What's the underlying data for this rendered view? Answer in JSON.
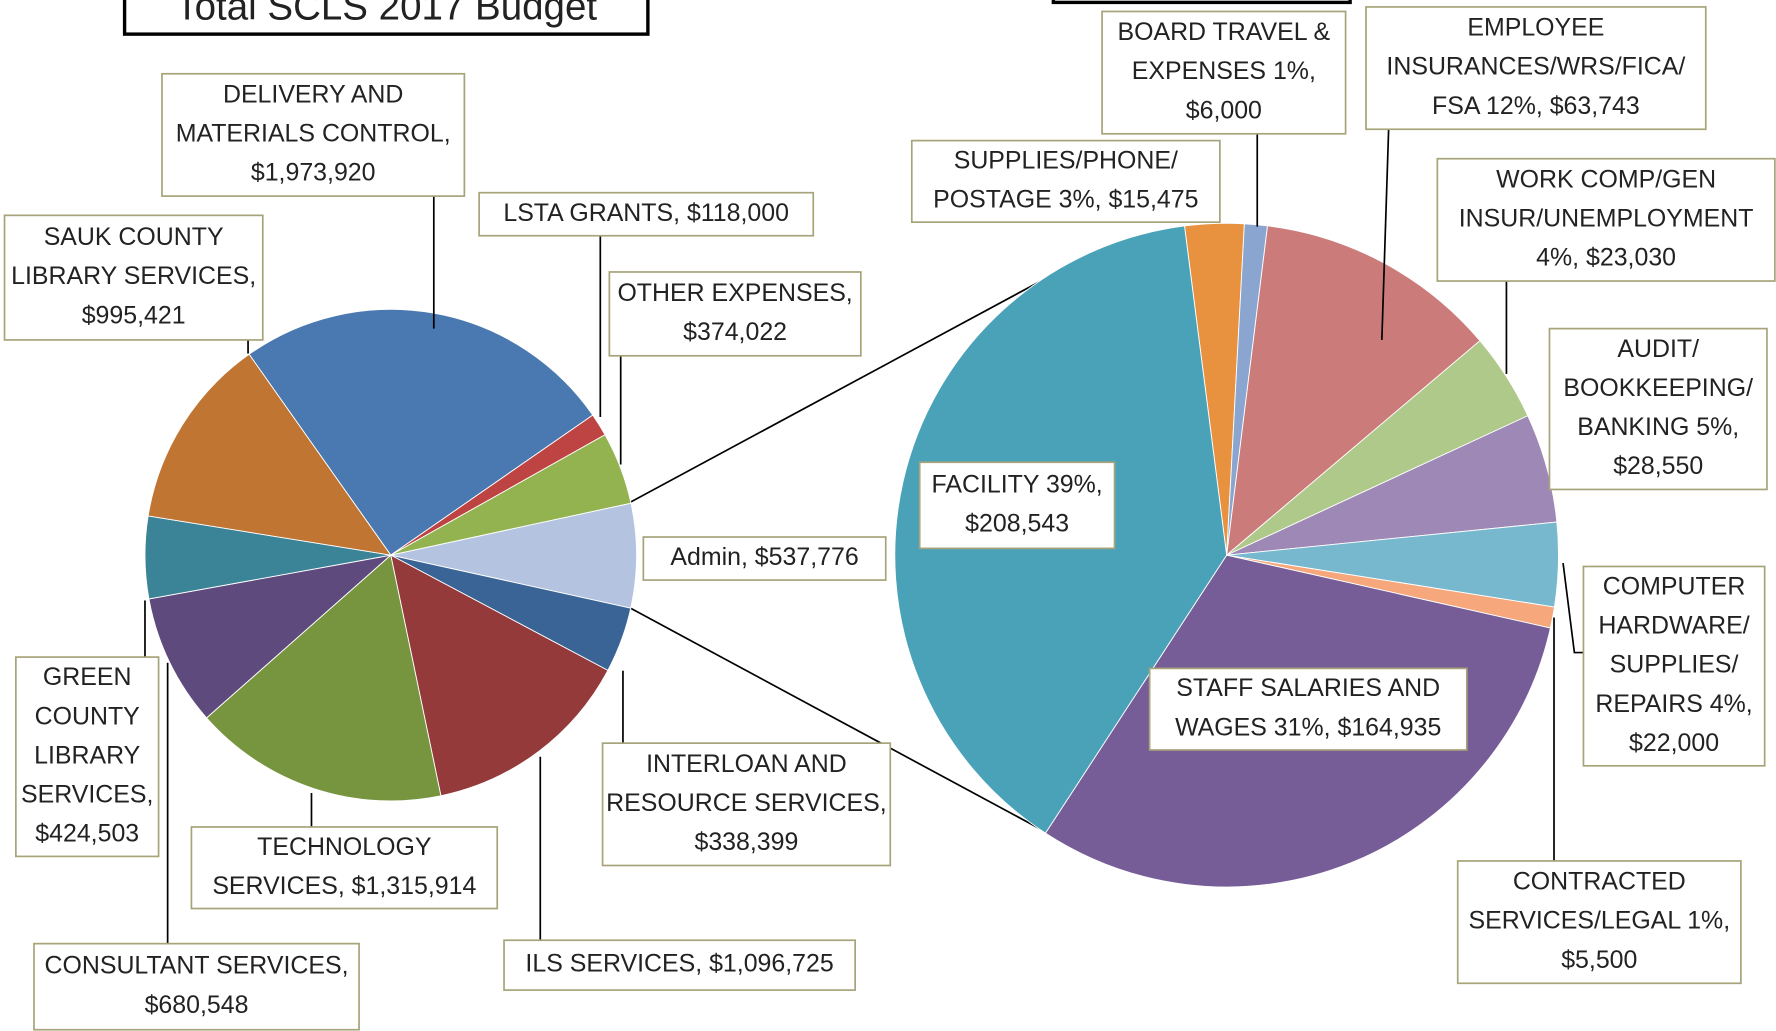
{
  "chart_data": [
    {
      "type": "pie",
      "title": "Total SCLS 2017 Budget",
      "labels": [
        [
          "DELIVERY AND",
          "MATERIALS CONTROL,",
          "$1,973,920"
        ],
        [
          "LSTA GRANTS,  $118,000"
        ],
        [
          "OTHER EXPENSES,",
          "$374,022"
        ],
        [
          "Admin,  $537,776"
        ],
        [
          "INTERLOAN AND",
          "RESOURCE SERVICES,",
          "$338,399"
        ],
        [
          "ILS SERVICES,  $1,096,725"
        ],
        [
          "TECHNOLOGY",
          "SERVICES,  $1,315,914"
        ],
        [
          "CONSULTANT SERVICES,",
          "$680,548"
        ],
        [
          "GREEN",
          "COUNTY",
          "LIBRARY",
          "SERVICES,",
          "$424,503"
        ],
        [
          "SAUK COUNTY",
          "LIBRARY SERVICES,",
          "$995,421"
        ]
      ],
      "values": [
        1973920,
        118000,
        374022,
        537776,
        338399,
        1096725,
        1315914,
        680548,
        424503,
        995421
      ],
      "colors": [
        "#4a78b0",
        "#bd4442",
        "#93b350",
        "#b4c4e0",
        "#3b6496",
        "#953a3a",
        "#77953f",
        "#5f4a7e",
        "#3b8497",
        "#c07533"
      ]
    },
    {
      "type": "pie",
      "labels": [
        [
          "SUPPLIES/PHONE/",
          "POSTAGE 3%,  $15,475"
        ],
        [
          "BOARD TRAVEL &",
          "EXPENSES 1%,",
          "$6,000"
        ],
        [
          "EMPLOYEE",
          "INSURANCES/WRS/FICA/",
          "FSA 12%,  $63,743"
        ],
        [
          "WORK COMP/GEN",
          "INSUR/UNEMPLOYMENT",
          "4%,  $23,030"
        ],
        [
          "AUDIT/",
          "BOOKKEEPING/",
          "BANKING 5%,",
          "$28,550"
        ],
        [
          "COMPUTER",
          "HARDWARE/",
          "SUPPLIES/",
          "REPAIRS 4%,",
          "$22,000"
        ],
        [
          "CONTRACTED",
          "SERVICES/LEGAL 1%,",
          "$5,500"
        ],
        [
          "STAFF SALARIES AND",
          "WAGES 31%,  $164,935"
        ],
        [
          "FACILITY 39%,",
          "$208,543"
        ]
      ],
      "values": [
        15475,
        6000,
        63743,
        23030,
        28550,
        22000,
        5500,
        164935,
        208543
      ],
      "colors": [
        "#e8913f",
        "#8aa6d0",
        "#cc7b7b",
        "#aec98a",
        "#9d88b6",
        "#77b8cf",
        "#f6a77b",
        "#775d98",
        "#4aa2b9"
      ]
    }
  ]
}
